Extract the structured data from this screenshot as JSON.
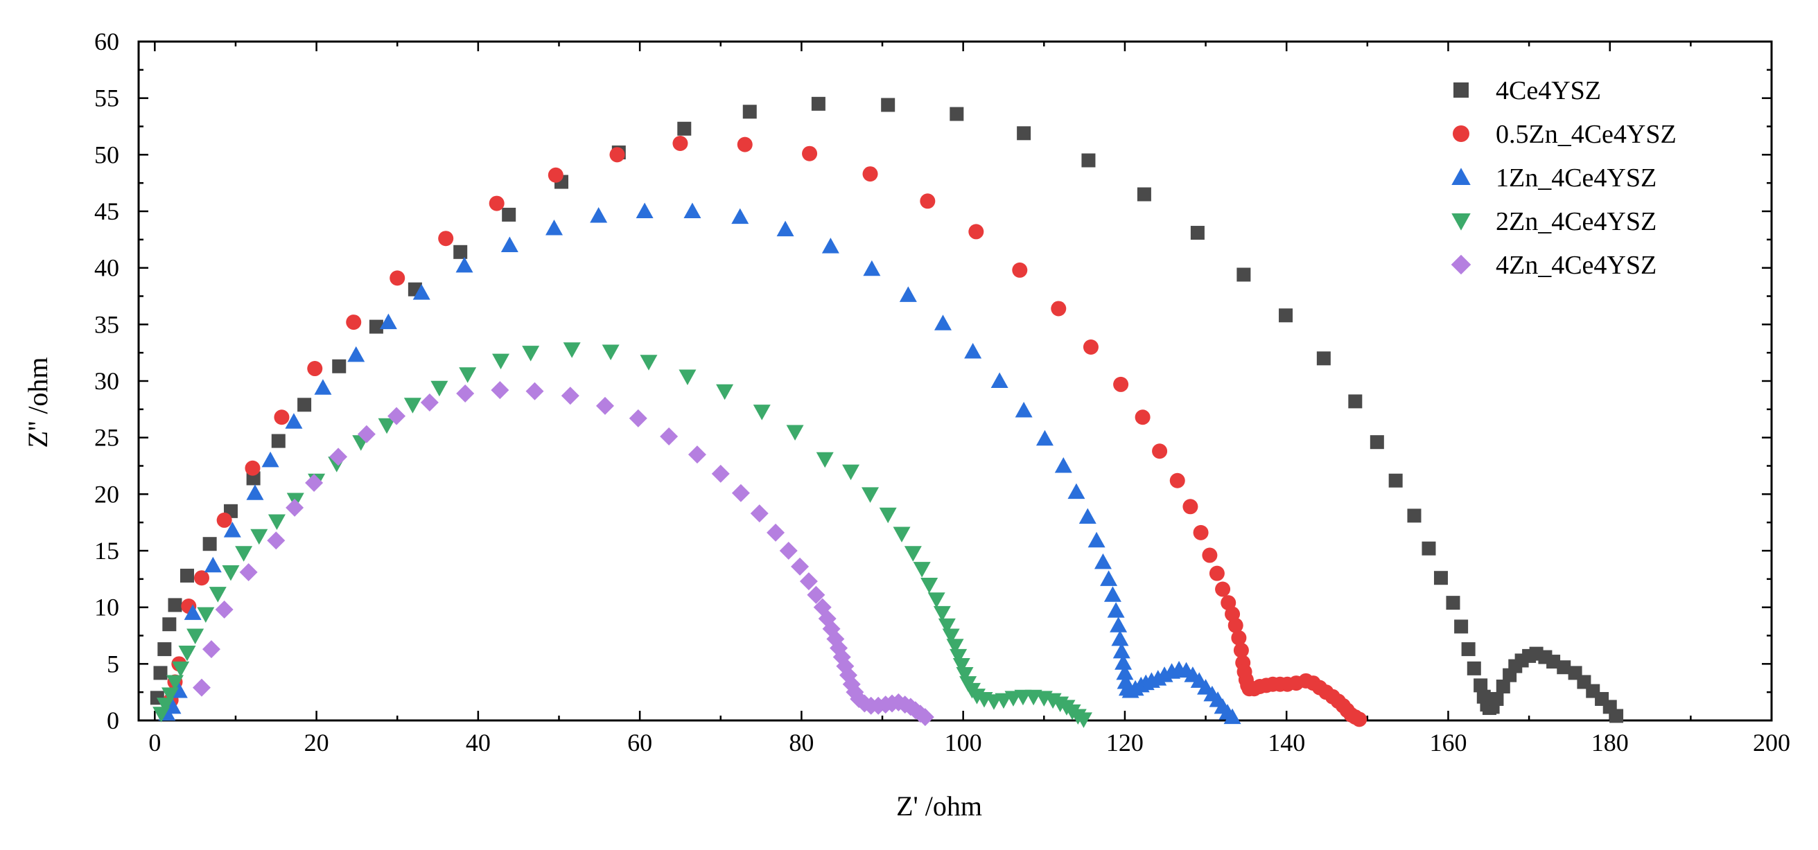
{
  "chart_data": {
    "type": "scatter",
    "title": "",
    "xlabel": "Z' /ohm",
    "ylabel": "Z'' /ohm",
    "xlim": [
      -2,
      200
    ],
    "ylim": [
      0,
      60
    ],
    "xticks": [
      0,
      20,
      40,
      60,
      80,
      100,
      120,
      140,
      160,
      180,
      200
    ],
    "yticks": [
      0,
      5,
      10,
      15,
      20,
      25,
      30,
      35,
      40,
      45,
      50,
      55,
      60
    ],
    "grid": false,
    "legend_position": "top-right",
    "series": [
      {
        "name": "4Ce4YSZ",
        "color": "#4a4a4a",
        "marker": "square",
        "points": [
          [
            0.3,
            2.0
          ],
          [
            0.7,
            4.2
          ],
          [
            1.2,
            6.3
          ],
          [
            1.8,
            8.5
          ],
          [
            2.5,
            10.2
          ],
          [
            4.0,
            12.8
          ],
          [
            6.8,
            15.6
          ],
          [
            9.4,
            18.5
          ],
          [
            12.2,
            21.4
          ],
          [
            15.3,
            24.7
          ],
          [
            18.5,
            27.9
          ],
          [
            22.8,
            31.3
          ],
          [
            27.4,
            34.8
          ],
          [
            32.2,
            38.1
          ],
          [
            37.8,
            41.4
          ],
          [
            43.8,
            44.7
          ],
          [
            50.3,
            47.6
          ],
          [
            57.4,
            50.2
          ],
          [
            65.5,
            52.3
          ],
          [
            73.6,
            53.8
          ],
          [
            82.1,
            54.5
          ],
          [
            90.7,
            54.4
          ],
          [
            99.2,
            53.6
          ],
          [
            107.5,
            51.9
          ],
          [
            115.5,
            49.5
          ],
          [
            122.4,
            46.5
          ],
          [
            129.0,
            43.1
          ],
          [
            134.7,
            39.4
          ],
          [
            139.9,
            35.8
          ],
          [
            144.6,
            32.0
          ],
          [
            148.5,
            28.2
          ],
          [
            151.2,
            24.6
          ],
          [
            153.5,
            21.2
          ],
          [
            155.8,
            18.1
          ],
          [
            157.6,
            15.2
          ],
          [
            159.1,
            12.6
          ],
          [
            160.6,
            10.4
          ],
          [
            161.6,
            8.3
          ],
          [
            162.5,
            6.3
          ],
          [
            163.2,
            4.6
          ],
          [
            164.0,
            3.1
          ],
          [
            164.4,
            2.1
          ],
          [
            164.8,
            1.4
          ],
          [
            165.1,
            1.1
          ],
          [
            165.5,
            1.2
          ],
          [
            166.0,
            1.9
          ],
          [
            166.8,
            3.0
          ],
          [
            167.6,
            4.0
          ],
          [
            168.3,
            4.8
          ],
          [
            169.1,
            5.3
          ],
          [
            170.0,
            5.7
          ],
          [
            170.9,
            5.9
          ],
          [
            172.0,
            5.6
          ],
          [
            173.0,
            5.2
          ],
          [
            174.3,
            4.7
          ],
          [
            175.7,
            4.2
          ],
          [
            176.8,
            3.4
          ],
          [
            177.9,
            2.6
          ],
          [
            179.0,
            1.9
          ],
          [
            180.0,
            1.2
          ],
          [
            180.8,
            0.4
          ]
        ]
      },
      {
        "name": "0.5Zn_4Ce4YSZ",
        "color": "#e83a3a",
        "marker": "circle",
        "points": [
          [
            2.0,
            1.8
          ],
          [
            2.5,
            3.4
          ],
          [
            3.0,
            5.0
          ],
          [
            4.2,
            10.1
          ],
          [
            5.8,
            12.6
          ],
          [
            8.6,
            17.7
          ],
          [
            12.1,
            22.3
          ],
          [
            15.7,
            26.8
          ],
          [
            19.8,
            31.1
          ],
          [
            24.6,
            35.2
          ],
          [
            30.0,
            39.1
          ],
          [
            36.0,
            42.6
          ],
          [
            42.3,
            45.7
          ],
          [
            49.6,
            48.2
          ],
          [
            57.2,
            50.0
          ],
          [
            65.0,
            51.0
          ],
          [
            73.0,
            50.9
          ],
          [
            81.0,
            50.1
          ],
          [
            88.5,
            48.3
          ],
          [
            95.6,
            45.9
          ],
          [
            101.6,
            43.2
          ],
          [
            107.0,
            39.8
          ],
          [
            111.8,
            36.4
          ],
          [
            115.8,
            33.0
          ],
          [
            119.5,
            29.7
          ],
          [
            122.2,
            26.8
          ],
          [
            124.3,
            23.8
          ],
          [
            126.5,
            21.2
          ],
          [
            128.1,
            18.9
          ],
          [
            129.4,
            16.6
          ],
          [
            130.5,
            14.6
          ],
          [
            131.4,
            13.0
          ],
          [
            132.1,
            11.6
          ],
          [
            132.8,
            10.4
          ],
          [
            133.3,
            9.4
          ],
          [
            133.7,
            8.4
          ],
          [
            134.1,
            7.3
          ],
          [
            134.4,
            6.2
          ],
          [
            134.6,
            5.1
          ],
          [
            134.8,
            4.3
          ],
          [
            135.0,
            3.6
          ],
          [
            135.2,
            3.1
          ],
          [
            135.4,
            2.8
          ],
          [
            136.0,
            2.8
          ],
          [
            136.7,
            3.0
          ],
          [
            137.5,
            3.1
          ],
          [
            138.3,
            3.2
          ],
          [
            139.2,
            3.2
          ],
          [
            140.1,
            3.2
          ],
          [
            141.2,
            3.3
          ],
          [
            142.4,
            3.5
          ],
          [
            143.3,
            3.3
          ],
          [
            144.1,
            2.9
          ],
          [
            144.9,
            2.5
          ],
          [
            145.7,
            2.1
          ],
          [
            146.4,
            1.7
          ],
          [
            147.0,
            1.3
          ],
          [
            147.5,
            0.9
          ],
          [
            148.0,
            0.5
          ],
          [
            148.5,
            0.3
          ],
          [
            149.0,
            0.1
          ]
        ]
      },
      {
        "name": "1Zn_4Ce4YSZ",
        "color": "#2a6fdb",
        "marker": "triangle-up",
        "points": [
          [
            1.5,
            0.6
          ],
          [
            2.2,
            1.2
          ],
          [
            3.0,
            2.6
          ],
          [
            4.7,
            9.5
          ],
          [
            7.2,
            13.7
          ],
          [
            9.6,
            16.8
          ],
          [
            12.4,
            20.1
          ],
          [
            14.3,
            23.0
          ],
          [
            17.2,
            26.4
          ],
          [
            20.8,
            29.4
          ],
          [
            24.9,
            32.3
          ],
          [
            28.9,
            35.2
          ],
          [
            33.0,
            37.8
          ],
          [
            38.3,
            40.2
          ],
          [
            43.9,
            42.0
          ],
          [
            49.4,
            43.5
          ],
          [
            54.9,
            44.6
          ],
          [
            60.6,
            45.0
          ],
          [
            66.5,
            45.0
          ],
          [
            72.4,
            44.5
          ],
          [
            78.0,
            43.4
          ],
          [
            83.6,
            41.9
          ],
          [
            88.7,
            39.9
          ],
          [
            93.2,
            37.6
          ],
          [
            97.5,
            35.1
          ],
          [
            101.2,
            32.6
          ],
          [
            104.5,
            30.0
          ],
          [
            107.5,
            27.4
          ],
          [
            110.1,
            24.9
          ],
          [
            112.4,
            22.5
          ],
          [
            114.0,
            20.2
          ],
          [
            115.4,
            18.0
          ],
          [
            116.5,
            15.9
          ],
          [
            117.3,
            14.0
          ],
          [
            118.0,
            12.5
          ],
          [
            118.5,
            11.1
          ],
          [
            118.9,
            9.7
          ],
          [
            119.2,
            8.4
          ],
          [
            119.4,
            7.2
          ],
          [
            119.6,
            6.1
          ],
          [
            119.8,
            5.1
          ],
          [
            120.0,
            4.2
          ],
          [
            120.1,
            3.4
          ],
          [
            120.3,
            2.8
          ],
          [
            120.7,
            2.6
          ],
          [
            121.3,
            2.8
          ],
          [
            122.0,
            3.1
          ],
          [
            122.6,
            3.3
          ],
          [
            123.3,
            3.5
          ],
          [
            124.1,
            3.7
          ],
          [
            124.9,
            4.0
          ],
          [
            125.8,
            4.3
          ],
          [
            126.7,
            4.5
          ],
          [
            127.6,
            4.4
          ],
          [
            128.4,
            4.0
          ],
          [
            129.2,
            3.5
          ],
          [
            130.0,
            2.9
          ],
          [
            130.8,
            2.3
          ],
          [
            131.5,
            1.8
          ],
          [
            132.1,
            1.2
          ],
          [
            132.7,
            0.7
          ],
          [
            133.3,
            0.3
          ]
        ]
      },
      {
        "name": "2Zn_4Ce4YSZ",
        "color": "#3caa6a",
        "marker": "triangle-down",
        "points": [
          [
            0.8,
            0.6
          ],
          [
            1.3,
            1.4
          ],
          [
            1.9,
            2.3
          ],
          [
            2.5,
            3.4
          ],
          [
            3.2,
            4.6
          ],
          [
            4.0,
            6.0
          ],
          [
            5.0,
            7.5
          ],
          [
            6.3,
            9.4
          ],
          [
            7.8,
            11.2
          ],
          [
            9.4,
            13.1
          ],
          [
            11.0,
            14.8
          ],
          [
            12.9,
            16.3
          ],
          [
            15.1,
            17.6
          ],
          [
            17.4,
            19.5
          ],
          [
            20.0,
            21.2
          ],
          [
            22.5,
            22.7
          ],
          [
            25.5,
            24.6
          ],
          [
            28.7,
            26.1
          ],
          [
            31.9,
            27.9
          ],
          [
            35.2,
            29.4
          ],
          [
            38.7,
            30.6
          ],
          [
            42.8,
            31.8
          ],
          [
            46.5,
            32.5
          ],
          [
            51.6,
            32.8
          ],
          [
            56.4,
            32.6
          ],
          [
            61.1,
            31.7
          ],
          [
            65.9,
            30.4
          ],
          [
            70.5,
            29.1
          ],
          [
            75.1,
            27.3
          ],
          [
            79.2,
            25.5
          ],
          [
            82.9,
            23.1
          ],
          [
            86.1,
            22.0
          ],
          [
            88.5,
            20.0
          ],
          [
            90.7,
            18.2
          ],
          [
            92.4,
            16.5
          ],
          [
            93.8,
            14.8
          ],
          [
            94.9,
            13.4
          ],
          [
            95.8,
            12.0
          ],
          [
            96.7,
            10.7
          ],
          [
            97.4,
            9.5
          ],
          [
            98.0,
            8.4
          ],
          [
            98.5,
            7.5
          ],
          [
            99.0,
            6.6
          ],
          [
            99.4,
            5.7
          ],
          [
            99.8,
            4.9
          ],
          [
            100.2,
            4.1
          ],
          [
            100.6,
            3.3
          ],
          [
            101.1,
            2.7
          ],
          [
            101.7,
            2.2
          ],
          [
            102.6,
            1.9
          ],
          [
            103.8,
            1.7
          ],
          [
            105.0,
            1.8
          ],
          [
            106.2,
            2.0
          ],
          [
            107.4,
            2.1
          ],
          [
            108.7,
            2.1
          ],
          [
            110.0,
            2.0
          ],
          [
            111.1,
            1.8
          ],
          [
            112.0,
            1.5
          ],
          [
            112.8,
            1.2
          ],
          [
            113.5,
            0.8
          ],
          [
            114.2,
            0.4
          ],
          [
            114.9,
            0.1
          ]
        ]
      },
      {
        "name": "4Zn_4Ce4YSZ",
        "color": "#b57fe0",
        "marker": "diamond",
        "points": [
          [
            5.8,
            2.9
          ],
          [
            7.0,
            6.3
          ],
          [
            8.6,
            9.8
          ],
          [
            11.6,
            13.1
          ],
          [
            15.0,
            15.9
          ],
          [
            17.3,
            18.8
          ],
          [
            19.7,
            21.0
          ],
          [
            22.7,
            23.3
          ],
          [
            26.2,
            25.3
          ],
          [
            29.9,
            26.9
          ],
          [
            34.0,
            28.1
          ],
          [
            38.4,
            28.9
          ],
          [
            42.7,
            29.2
          ],
          [
            47.0,
            29.1
          ],
          [
            51.4,
            28.7
          ],
          [
            55.7,
            27.8
          ],
          [
            59.8,
            26.7
          ],
          [
            63.6,
            25.1
          ],
          [
            67.1,
            23.5
          ],
          [
            70.0,
            21.8
          ],
          [
            72.5,
            20.1
          ],
          [
            74.8,
            18.3
          ],
          [
            76.8,
            16.6
          ],
          [
            78.4,
            15.0
          ],
          [
            79.8,
            13.6
          ],
          [
            80.9,
            12.3
          ],
          [
            81.8,
            11.1
          ],
          [
            82.6,
            10.0
          ],
          [
            83.2,
            9.0
          ],
          [
            83.7,
            8.1
          ],
          [
            84.2,
            7.2
          ],
          [
            84.6,
            6.4
          ],
          [
            85.0,
            5.6
          ],
          [
            85.4,
            4.8
          ],
          [
            85.8,
            4.0
          ],
          [
            86.2,
            3.2
          ],
          [
            86.6,
            2.5
          ],
          [
            87.1,
            1.9
          ],
          [
            87.8,
            1.5
          ],
          [
            88.6,
            1.3
          ],
          [
            89.5,
            1.3
          ],
          [
            90.4,
            1.4
          ],
          [
            91.2,
            1.5
          ],
          [
            92.0,
            1.6
          ],
          [
            92.8,
            1.4
          ],
          [
            93.5,
            1.2
          ],
          [
            94.1,
            0.9
          ],
          [
            94.7,
            0.6
          ],
          [
            95.3,
            0.3
          ]
        ]
      }
    ]
  }
}
